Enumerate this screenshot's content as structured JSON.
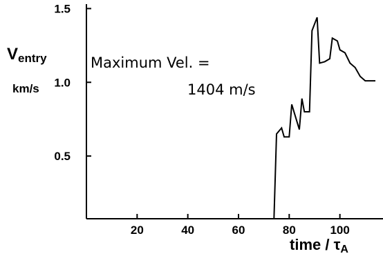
{
  "chart_data": {
    "type": "line",
    "ylabel": {
      "main": "V",
      "sub": "entry",
      "unit": "km/s"
    },
    "xlabel": {
      "main": "time / τ",
      "sub": "A"
    },
    "xlim": [
      0,
      117
    ],
    "ylim": [
      0.075,
      1.53
    ],
    "xticks": [
      20,
      40,
      60,
      80,
      100
    ],
    "yticks": [
      0.5,
      1.0,
      1.5
    ],
    "ytick_labels": [
      "0.5",
      "1.0",
      "1.5"
    ],
    "grid": false,
    "annotation": {
      "line1": "Maximum  Vel.  =",
      "line2": "1404 m/s"
    },
    "series": [
      {
        "x": [
          74,
          75,
          77,
          78,
          80,
          81,
          84,
          85,
          86,
          88,
          89,
          91,
          92,
          94,
          96,
          97,
          99,
          100,
          102,
          104,
          106,
          108,
          110,
          114
        ],
        "y": [
          0.075,
          0.65,
          0.69,
          0.63,
          0.63,
          0.85,
          0.68,
          0.89,
          0.8,
          0.8,
          1.35,
          1.44,
          1.13,
          1.14,
          1.16,
          1.3,
          1.28,
          1.22,
          1.2,
          1.13,
          1.1,
          1.04,
          1.01,
          1.01
        ]
      }
    ]
  }
}
